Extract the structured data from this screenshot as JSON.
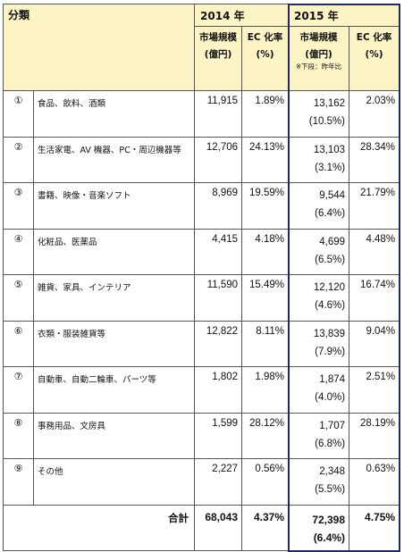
{
  "header": {
    "category": "分類",
    "year2014": "2014 年",
    "year2015": "2015 年",
    "market_size_label": "市場規模",
    "market_size_unit": "(億円)",
    "ec_rate_label": "EC 化率",
    "ec_rate_unit": "(%)",
    "yoy_note": "※下段：昨年比"
  },
  "rows": [
    {
      "no": "①",
      "label": "食品、飲料、酒類",
      "m2014": "11,915",
      "ec2014": "1.89%",
      "m2015": "13,162",
      "yoy": "(10.5%)",
      "ec2015": "2.03%"
    },
    {
      "no": "②",
      "label": "生活家電、AV 機器、PC・周辺機器等",
      "m2014": "12,706",
      "ec2014": "24.13%",
      "m2015": "13,103",
      "yoy": "(3.1%)",
      "ec2015": "28.34%"
    },
    {
      "no": "③",
      "label": "書籍、映像・音楽ソフト",
      "m2014": "8,969",
      "ec2014": "19.59%",
      "m2015": "9,544",
      "yoy": "(6.4%)",
      "ec2015": "21.79%"
    },
    {
      "no": "④",
      "label": "化粧品、医薬品",
      "m2014": "4,415",
      "ec2014": "4.18%",
      "m2015": "4,699",
      "yoy": "(6.5%)",
      "ec2015": "4.48%"
    },
    {
      "no": "⑤",
      "label": "雑貨、家具、インテリア",
      "m2014": "11,590",
      "ec2014": "15.49%",
      "m2015": "12,120",
      "yoy": "(4.6%)",
      "ec2015": "16.74%"
    },
    {
      "no": "⑥",
      "label": "衣類・服装雑貨等",
      "m2014": "12,822",
      "ec2014": "8.11%",
      "m2015": "13,839",
      "yoy": "(7.9%)",
      "ec2015": "9.04%"
    },
    {
      "no": "⑦",
      "label": "自動車、自動二輪車、パーツ等",
      "m2014": "1,802",
      "ec2014": "1.98%",
      "m2015": "1,874",
      "yoy": "(4.0%)",
      "ec2015": "2.51%"
    },
    {
      "no": "⑧",
      "label": "事務用品、文房具",
      "m2014": "1,599",
      "ec2014": "28.12%",
      "m2015": "1,707",
      "yoy": "(6.8%)",
      "ec2015": "28.19%"
    },
    {
      "no": "⑨",
      "label": "その他",
      "m2014": "2,227",
      "ec2014": "0.56%",
      "m2015": "2,348",
      "yoy": "(5.5%)",
      "ec2015": "0.63%"
    }
  ],
  "total": {
    "label": "合計",
    "m2014": "68,043",
    "ec2014": "4.37%",
    "m2015": "72,398",
    "yoy": "(6.4%)",
    "ec2015": "4.75%"
  },
  "colors": {
    "header_bg": "#fdf4c5",
    "highlight_border": "#1f2a66"
  }
}
